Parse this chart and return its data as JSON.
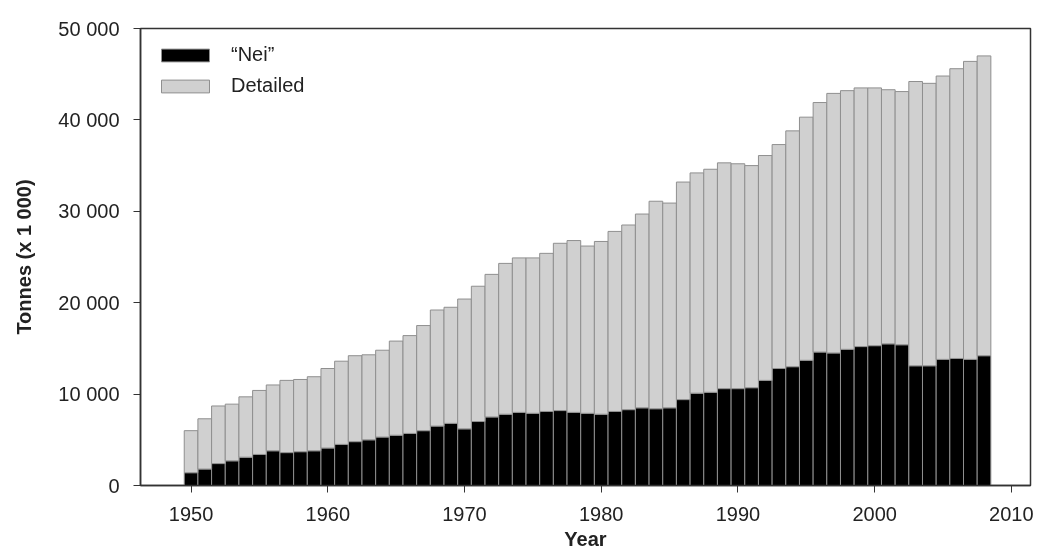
{
  "chart_data": {
    "type": "bar",
    "stacked": true,
    "xlabel": "Year",
    "ylabel": "Tonnes (x 1 000)",
    "x": [
      1950,
      1951,
      1952,
      1953,
      1954,
      1955,
      1956,
      1957,
      1958,
      1959,
      1960,
      1961,
      1962,
      1963,
      1964,
      1965,
      1966,
      1967,
      1968,
      1969,
      1970,
      1971,
      1972,
      1973,
      1974,
      1975,
      1976,
      1977,
      1978,
      1979,
      1980,
      1981,
      1982,
      1983,
      1984,
      1985,
      1986,
      1987,
      1988,
      1989,
      1990,
      1991,
      1992,
      1993,
      1994,
      1995,
      1996,
      1997,
      1998,
      1999,
      2000,
      2001,
      2002,
      2003,
      2004,
      2005,
      2006,
      2007,
      2008
    ],
    "series": [
      {
        "name": "“Nei”",
        "color": "#000000",
        "values": [
          1400,
          1800,
          2400,
          2700,
          3100,
          3400,
          3800,
          3600,
          3700,
          3800,
          4100,
          4500,
          4800,
          5000,
          5300,
          5500,
          5700,
          6000,
          6500,
          6800,
          6200,
          7000,
          7500,
          7800,
          8000,
          7900,
          8100,
          8200,
          8000,
          7900,
          7800,
          8100,
          8300,
          8500,
          8400,
          8500,
          9400,
          10100,
          10200,
          10600,
          10600,
          10700,
          11500,
          12800,
          13000,
          13700,
          14600,
          14500,
          14900,
          15200,
          15300,
          15500,
          15400,
          13100,
          13100,
          13800,
          13900,
          13800,
          14200
        ]
      },
      {
        "name": "Detailed",
        "color": "#d0d0d0",
        "values": [
          4600,
          5500,
          6300,
          6200,
          6600,
          7000,
          7200,
          7900,
          7900,
          8100,
          8700,
          9100,
          9400,
          9300,
          9500,
          10300,
          10700,
          11500,
          12700,
          12700,
          14200,
          14800,
          15600,
          16500,
          16900,
          17000,
          17300,
          18300,
          18800,
          18300,
          18900,
          19700,
          20200,
          21200,
          22700,
          22400,
          23800,
          24100,
          24400,
          24700,
          24600,
          24300,
          24600,
          24500,
          25800,
          26600,
          27300,
          28400,
          28300,
          28300,
          28200,
          27800,
          27700,
          31100,
          30900,
          31000,
          31700,
          32600,
          32800
        ]
      }
    ],
    "xlim": [
      1946.3,
      2011.4
    ],
    "xticks": [
      1950,
      1960,
      1970,
      1980,
      1990,
      2000,
      2010
    ],
    "ylim": [
      0,
      50000
    ],
    "yticks": [
      0,
      {
        "value": 10000,
        "label": "10 000"
      },
      {
        "value": 20000,
        "label": "20 000"
      },
      {
        "value": 30000,
        "label": "30 000"
      },
      {
        "value": 40000,
        "label": "40 000"
      },
      {
        "value": 50000,
        "label": "50 000"
      }
    ],
    "legend": "top left"
  }
}
